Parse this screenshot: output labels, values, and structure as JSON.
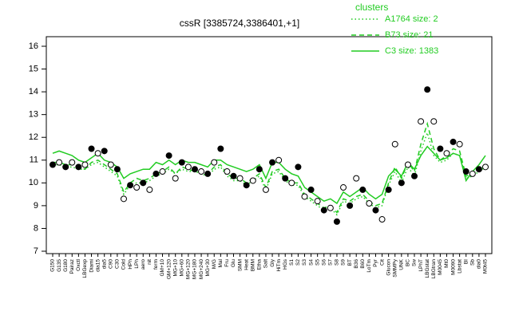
{
  "chart_data": {
    "type": "line",
    "title": "cssR [3385724,3386401,+1]",
    "legend_title": "clusters",
    "legend_position": "top-right",
    "categories": [
      "G150",
      "G135",
      "G180",
      "Pairaz",
      "Oxctl",
      "LBGexp",
      "Diami",
      "dia15",
      "dia5",
      "C90",
      "C30",
      "Cold",
      "HPh",
      "LPh",
      "aero",
      "nit",
      "ferm",
      "GM+10",
      "GM+120",
      "MG+10",
      "MG+60",
      "MG+120",
      "MG+180",
      "MG+240",
      "MG+30",
      "M/G",
      "Mal",
      "Fru",
      "Glu",
      "SMM",
      "Heat",
      "BMM",
      "Etha",
      "Salt",
      "Gly",
      "HiTm",
      "HGs",
      "S1",
      "S2",
      "S3",
      "S4",
      "S5",
      "S6",
      "S7",
      "S8",
      "S9",
      "BT",
      "B36",
      "B60",
      "LoTm",
      "Pyr",
      "Cit",
      "Glucon",
      "SMMPy",
      "UNK",
      "BC",
      "Sw",
      "LPhT",
      "LBGstat",
      "LBGtran",
      "M0045",
      "Mt0",
      "M0090",
      "Lbstat",
      "BI",
      "Sb",
      "dia0",
      "M0t45"
    ],
    "points": [
      10.8,
      10.9,
      10.7,
      10.9,
      10.7,
      10.8,
      11.5,
      11.3,
      11.4,
      10.8,
      10.6,
      9.3,
      9.9,
      9.8,
      10.0,
      9.7,
      10.4,
      10.5,
      11.2,
      10.2,
      10.9,
      10.7,
      10.6,
      10.5,
      10.4,
      10.9,
      11.5,
      10.5,
      10.3,
      10.2,
      9.9,
      10.1,
      10.6,
      9.7,
      10.9,
      11.0,
      10.2,
      10.0,
      10.7,
      9.4,
      9.7,
      9.2,
      8.8,
      8.9,
      8.3,
      9.8,
      9.0,
      10.2,
      9.7,
      9.1,
      8.8,
      8.4,
      9.7,
      11.7,
      10.0,
      10.8,
      10.3,
      12.7,
      14.1,
      12.7,
      11.5,
      11.3,
      11.8,
      11.7,
      10.5,
      10.4,
      10.6,
      10.7
    ],
    "series": [
      {
        "name": "A1764 size: 2",
        "color": "#22cc22",
        "dash": "dotted",
        "values": [
          10.8,
          10.8,
          10.7,
          10.7,
          10.6,
          10.6,
          10.8,
          10.9,
          10.7,
          10.5,
          10.3,
          9.5,
          9.9,
          10.0,
          10.0,
          10.1,
          10.3,
          10.4,
          10.6,
          10.4,
          10.6,
          10.5,
          10.5,
          10.4,
          10.3,
          10.6,
          10.7,
          10.3,
          10.1,
          10.1,
          9.9,
          10.1,
          10.3,
          9.7,
          10.4,
          10.5,
          10.1,
          9.9,
          9.9,
          9.4,
          9.2,
          9.0,
          8.8,
          8.9,
          8.6,
          9.2,
          9.1,
          9.3,
          9.4,
          9.1,
          8.9,
          9.0,
          9.9,
          10.5,
          10.0,
          10.7,
          10.3,
          11.4,
          12.2,
          11.2,
          10.9,
          11.0,
          11.3,
          11.2,
          10.2,
          10.3,
          10.5,
          10.7
        ]
      },
      {
        "name": "B73 size: 21",
        "color": "#22cc22",
        "dash": "dashed",
        "values": [
          10.9,
          10.9,
          10.8,
          10.8,
          10.7,
          10.6,
          10.9,
          11.0,
          10.8,
          10.6,
          10.4,
          9.6,
          10.0,
          10.2,
          10.1,
          10.2,
          10.4,
          10.5,
          10.7,
          10.4,
          10.7,
          10.6,
          10.5,
          10.5,
          10.4,
          10.7,
          10.8,
          10.4,
          10.2,
          10.2,
          10.0,
          10.2,
          10.4,
          9.8,
          10.5,
          10.6,
          10.2,
          10.0,
          10.0,
          9.5,
          9.3,
          9.1,
          8.9,
          9.0,
          8.7,
          9.3,
          9.2,
          9.4,
          9.5,
          9.2,
          9.0,
          9.1,
          10.0,
          10.7,
          10.2,
          10.9,
          10.5,
          11.7,
          12.6,
          11.5,
          11.0,
          11.2,
          11.5,
          11.4,
          10.3,
          10.4,
          10.6,
          10.8
        ]
      },
      {
        "name": "C3 size: 1383",
        "color": "#22cc22",
        "dash": "solid",
        "values": [
          11.3,
          11.4,
          11.3,
          11.2,
          11.0,
          10.9,
          11.1,
          11.3,
          11.0,
          10.9,
          10.7,
          10.2,
          10.4,
          10.5,
          10.6,
          10.6,
          10.9,
          10.8,
          11.0,
          10.8,
          11.0,
          10.9,
          10.9,
          10.8,
          10.7,
          11.0,
          11.0,
          10.8,
          10.7,
          10.6,
          10.5,
          10.6,
          10.8,
          10.2,
          10.9,
          10.9,
          10.6,
          10.4,
          10.3,
          9.8,
          9.6,
          9.4,
          9.2,
          9.3,
          9.1,
          9.6,
          9.4,
          9.6,
          9.8,
          9.5,
          9.3,
          9.5,
          10.3,
          10.6,
          10.3,
          10.9,
          10.6,
          11.2,
          11.6,
          11.3,
          11.0,
          11.1,
          11.3,
          11.2,
          10.1,
          10.5,
          10.8,
          11.2
        ]
      }
    ],
    "ylim": [
      7,
      16
    ],
    "yticks": [
      7,
      8,
      9,
      10,
      11,
      12,
      13,
      14,
      15,
      16
    ]
  }
}
